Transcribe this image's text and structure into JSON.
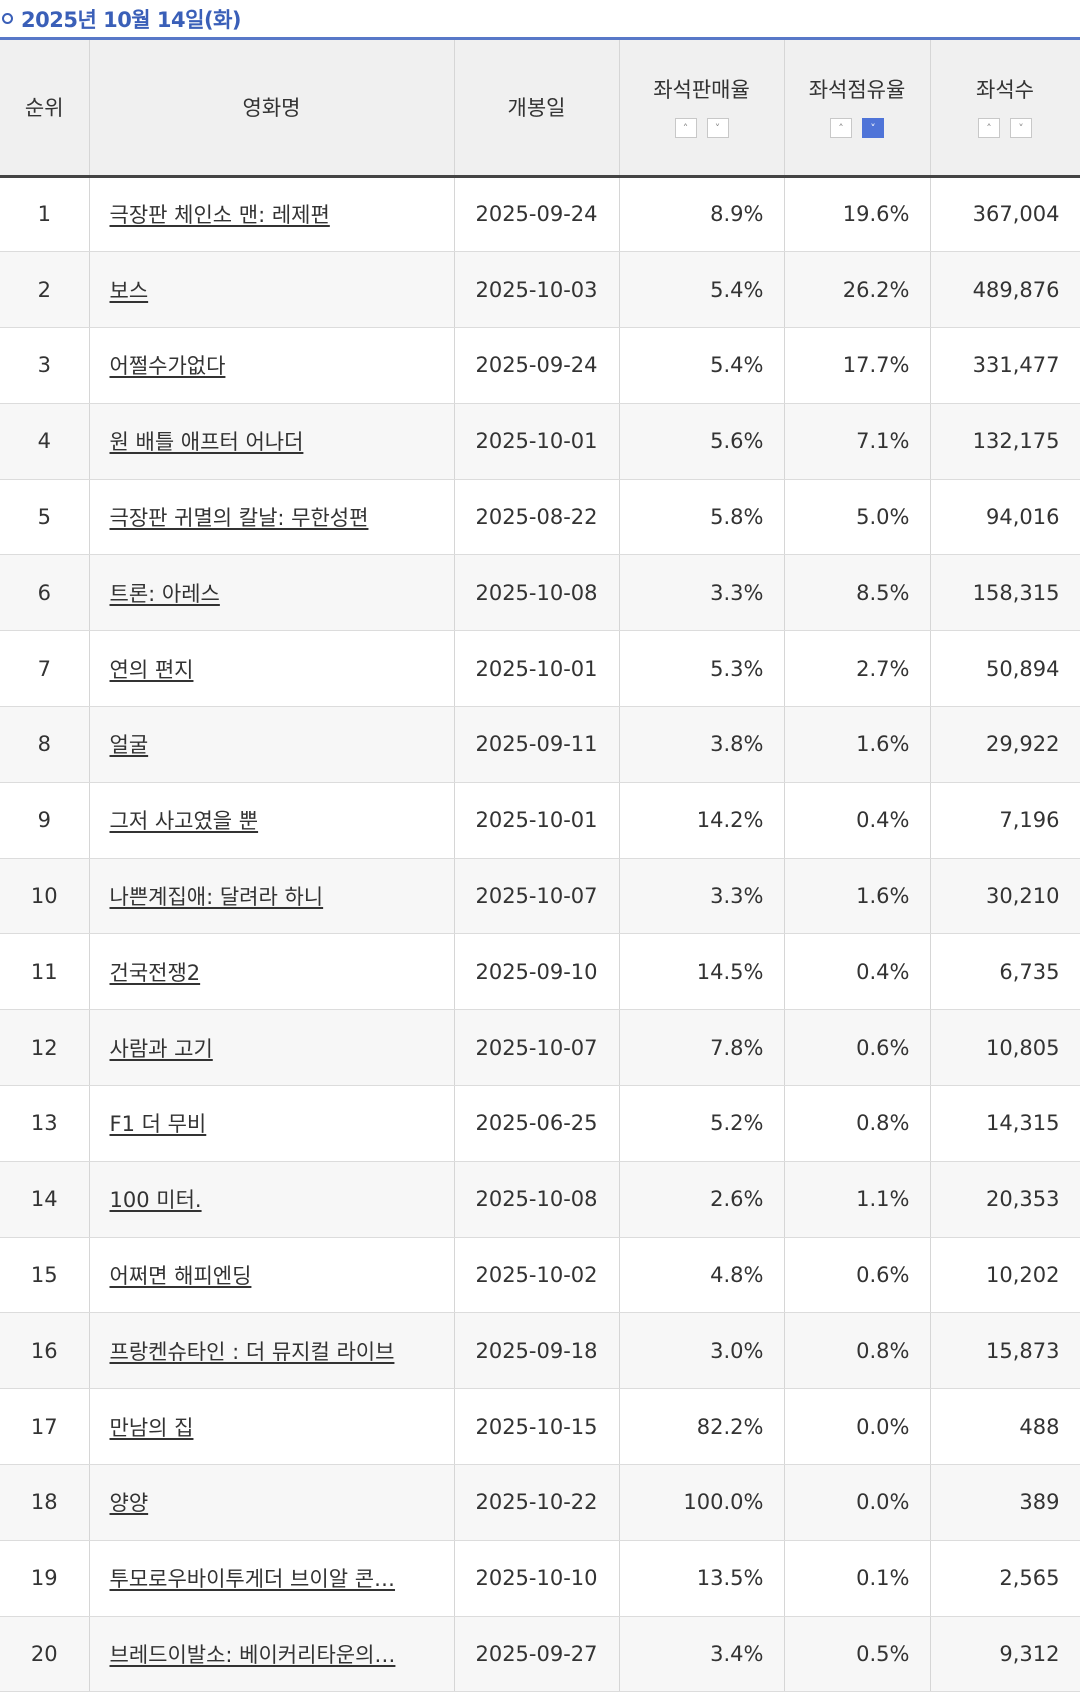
{
  "header": {
    "date": "2025년 10월 14일(화)"
  },
  "columns": {
    "rank": "순위",
    "title": "영화명",
    "open_date": "개봉일",
    "sales_rate": "좌석판매율",
    "share": "좌석점유율",
    "seats": "좌석수"
  },
  "sort": {
    "up_icon": "chevron-up-icon",
    "down_icon": "chevron-down-icon",
    "active": "share-desc"
  },
  "rows": [
    {
      "rank": "1",
      "title": "극장판 체인소 맨: 레제편",
      "open_date": "2025-09-24",
      "sales_rate": "8.9%",
      "share": "19.6%",
      "seats": "367,004"
    },
    {
      "rank": "2",
      "title": "보스",
      "open_date": "2025-10-03",
      "sales_rate": "5.4%",
      "share": "26.2%",
      "seats": "489,876"
    },
    {
      "rank": "3",
      "title": "어쩔수가없다",
      "open_date": "2025-09-24",
      "sales_rate": "5.4%",
      "share": "17.7%",
      "seats": "331,477"
    },
    {
      "rank": "4",
      "title": "원 배틀 애프터 어나더",
      "open_date": "2025-10-01",
      "sales_rate": "5.6%",
      "share": "7.1%",
      "seats": "132,175"
    },
    {
      "rank": "5",
      "title": "극장판 귀멸의 칼날: 무한성편",
      "open_date": "2025-08-22",
      "sales_rate": "5.8%",
      "share": "5.0%",
      "seats": "94,016"
    },
    {
      "rank": "6",
      "title": "트론: 아레스",
      "open_date": "2025-10-08",
      "sales_rate": "3.3%",
      "share": "8.5%",
      "seats": "158,315"
    },
    {
      "rank": "7",
      "title": "연의 편지",
      "open_date": "2025-10-01",
      "sales_rate": "5.3%",
      "share": "2.7%",
      "seats": "50,894"
    },
    {
      "rank": "8",
      "title": "얼굴",
      "open_date": "2025-09-11",
      "sales_rate": "3.8%",
      "share": "1.6%",
      "seats": "29,922"
    },
    {
      "rank": "9",
      "title": "그저 사고였을 뿐",
      "open_date": "2025-10-01",
      "sales_rate": "14.2%",
      "share": "0.4%",
      "seats": "7,196"
    },
    {
      "rank": "10",
      "title": "나쁜계집애: 달려라 하니",
      "open_date": "2025-10-07",
      "sales_rate": "3.3%",
      "share": "1.6%",
      "seats": "30,210"
    },
    {
      "rank": "11",
      "title": "건국전쟁2",
      "open_date": "2025-09-10",
      "sales_rate": "14.5%",
      "share": "0.4%",
      "seats": "6,735"
    },
    {
      "rank": "12",
      "title": "사람과 고기",
      "open_date": "2025-10-07",
      "sales_rate": "7.8%",
      "share": "0.6%",
      "seats": "10,805"
    },
    {
      "rank": "13",
      "title": "F1 더 무비",
      "open_date": "2025-06-25",
      "sales_rate": "5.2%",
      "share": "0.8%",
      "seats": "14,315"
    },
    {
      "rank": "14",
      "title": "100 미터.",
      "open_date": "2025-10-08",
      "sales_rate": "2.6%",
      "share": "1.1%",
      "seats": "20,353"
    },
    {
      "rank": "15",
      "title": "어쩌면 해피엔딩",
      "open_date": "2025-10-02",
      "sales_rate": "4.8%",
      "share": "0.6%",
      "seats": "10,202"
    },
    {
      "rank": "16",
      "title": "프랑켄슈타인 : 더 뮤지컬 라이브",
      "open_date": "2025-09-18",
      "sales_rate": "3.0%",
      "share": "0.8%",
      "seats": "15,873"
    },
    {
      "rank": "17",
      "title": "만남의 집",
      "open_date": "2025-10-15",
      "sales_rate": "82.2%",
      "share": "0.0%",
      "seats": "488"
    },
    {
      "rank": "18",
      "title": "양양",
      "open_date": "2025-10-22",
      "sales_rate": "100.0%",
      "share": "0.0%",
      "seats": "389"
    },
    {
      "rank": "19",
      "title": "투모로우바이투게더 브이알 콘…",
      "open_date": "2025-10-10",
      "sales_rate": "13.5%",
      "share": "0.1%",
      "seats": "2,565"
    },
    {
      "rank": "20",
      "title": "브레드이발소: 베이커리타운의…",
      "open_date": "2025-09-27",
      "sales_rate": "3.4%",
      "share": "0.5%",
      "seats": "9,312"
    }
  ]
}
